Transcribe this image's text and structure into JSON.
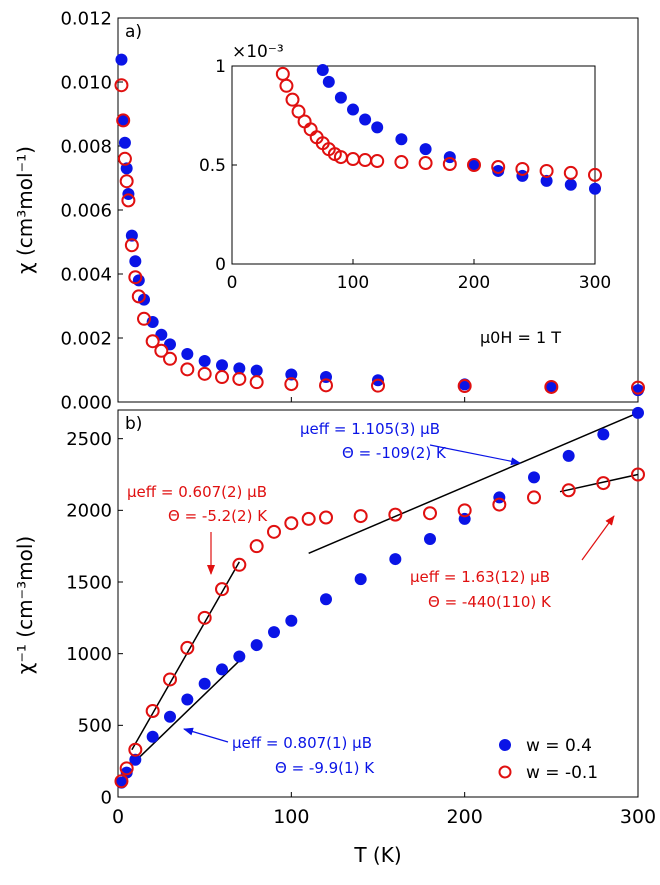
{
  "colors": {
    "blue": "#0a14e6",
    "red": "#e01010",
    "fit": "#000000",
    "axis": "#000000"
  },
  "chart_data": [
    {
      "panel": "a",
      "panel_label": "a)",
      "type": "scatter",
      "ylabel": "χ (cm³mol⁻¹)",
      "xlim": [
        0,
        300
      ],
      "ylim": [
        0,
        0.012
      ],
      "xticks": [
        0,
        100,
        200,
        300
      ],
      "yticks": [
        "0.000",
        "0.002",
        "0.004",
        "0.006",
        "0.008",
        "0.010",
        "0.012"
      ],
      "annotation": "μ0H = 1 T",
      "series": [
        {
          "name": "w = 0.4",
          "marker": "filled",
          "color": "#0a14e6",
          "x": [
            2,
            3,
            4,
            5,
            6,
            8,
            10,
            12,
            15,
            20,
            25,
            30,
            40,
            50,
            60,
            70,
            80,
            100,
            120,
            150,
            200,
            250,
            300
          ],
          "y": [
            0.0107,
            0.0088,
            0.0081,
            0.0073,
            0.0065,
            0.0052,
            0.0044,
            0.0038,
            0.0032,
            0.0025,
            0.0021,
            0.0018,
            0.0015,
            0.00128,
            0.00115,
            0.00105,
            0.00098,
            0.00086,
            0.00078,
            0.00068,
            0.00055,
            0.00045,
            0.00037
          ]
        },
        {
          "name": "w = -0.1",
          "marker": "open",
          "color": "#e01010",
          "x": [
            2,
            3,
            4,
            5,
            6,
            8,
            10,
            12,
            15,
            20,
            25,
            30,
            40,
            50,
            60,
            70,
            80,
            100,
            120,
            150,
            200,
            250,
            300
          ],
          "y": [
            0.0099,
            0.0088,
            0.0076,
            0.0069,
            0.0063,
            0.0049,
            0.0039,
            0.0033,
            0.0026,
            0.0019,
            0.0016,
            0.00135,
            0.00102,
            0.00088,
            0.00078,
            0.00072,
            0.00062,
            0.00056,
            0.00052,
            0.00051,
            0.0005,
            0.00047,
            0.00045
          ]
        }
      ]
    },
    {
      "panel": "a-inset",
      "type": "scatter",
      "scale_label": "×10⁻³",
      "xlim": [
        0,
        300
      ],
      "ylim": [
        0,
        1
      ],
      "xticks": [
        0,
        100,
        200,
        300
      ],
      "yticks": [
        "0",
        "0.5",
        "1"
      ],
      "series": [
        {
          "name": "w = 0.4",
          "marker": "filled",
          "color": "#0a14e6",
          "x": [
            75,
            80,
            90,
            100,
            110,
            120,
            140,
            160,
            180,
            200,
            220,
            240,
            260,
            280,
            300
          ],
          "y": [
            0.98,
            0.92,
            0.84,
            0.78,
            0.73,
            0.69,
            0.63,
            0.58,
            0.54,
            0.5,
            0.47,
            0.445,
            0.42,
            0.4,
            0.38
          ]
        },
        {
          "name": "w = -0.1",
          "marker": "open",
          "color": "#e01010",
          "x": [
            42,
            45,
            50,
            55,
            60,
            65,
            70,
            75,
            80,
            85,
            90,
            100,
            110,
            120,
            140,
            160,
            180,
            200,
            220,
            240,
            260,
            280,
            300
          ],
          "y": [
            0.96,
            0.9,
            0.83,
            0.77,
            0.72,
            0.68,
            0.64,
            0.61,
            0.58,
            0.555,
            0.54,
            0.53,
            0.525,
            0.52,
            0.515,
            0.51,
            0.505,
            0.5,
            0.49,
            0.48,
            0.47,
            0.46,
            0.45
          ]
        }
      ]
    },
    {
      "panel": "b",
      "panel_label": "b)",
      "type": "scatter",
      "xlabel": "T (K)",
      "ylabel": "χ⁻¹ (cm⁻³mol)",
      "xlim": [
        0,
        300
      ],
      "ylim": [
        0,
        2700
      ],
      "xticks": [
        0,
        100,
        200,
        300
      ],
      "yticks": [
        0,
        500,
        1000,
        1500,
        2000,
        2500
      ],
      "legend": "bottom-right",
      "series": [
        {
          "name": "w = 0.4",
          "marker": "filled",
          "color": "#0a14e6",
          "x": [
            2,
            5,
            10,
            20,
            30,
            40,
            50,
            60,
            70,
            80,
            90,
            100,
            120,
            140,
            160,
            180,
            200,
            220,
            240,
            260,
            280,
            300
          ],
          "y": [
            100,
            170,
            260,
            420,
            560,
            680,
            790,
            890,
            980,
            1060,
            1150,
            1230,
            1380,
            1520,
            1660,
            1800,
            1940,
            2090,
            2230,
            2380,
            2530,
            2680
          ]
        },
        {
          "name": "w = -0.1",
          "marker": "open",
          "color": "#e01010",
          "x": [
            2,
            5,
            10,
            20,
            30,
            40,
            50,
            60,
            70,
            80,
            90,
            100,
            110,
            120,
            140,
            160,
            180,
            200,
            220,
            240,
            260,
            280,
            300
          ],
          "y": [
            110,
            200,
            330,
            600,
            820,
            1040,
            1250,
            1450,
            1620,
            1750,
            1850,
            1910,
            1940,
            1950,
            1960,
            1970,
            1980,
            2000,
            2040,
            2090,
            2140,
            2190,
            2250
          ]
        }
      ],
      "annotations": [
        {
          "mu": "μeff = 1.105(3) μB",
          "theta": "Θ = -109(2) K",
          "color": "#0a14e6"
        },
        {
          "mu": "μeff = 0.607(2) μB",
          "theta": "Θ = -5.2(2) K",
          "color": "#e01010"
        },
        {
          "mu": "μeff = 1.63(12) μB",
          "theta": "Θ = -440(110) K",
          "color": "#e01010"
        },
        {
          "mu": "μeff = 0.807(1) μB",
          "theta": "Θ = -9.9(1) K",
          "color": "#0a14e6"
        }
      ]
    }
  ]
}
